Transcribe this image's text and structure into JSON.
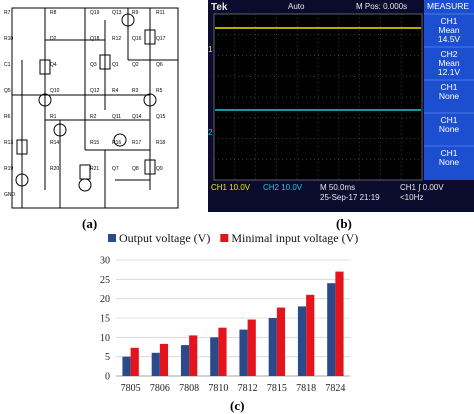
{
  "panels": {
    "a": "(a)",
    "b": "(b)",
    "c": "(c)"
  },
  "schematic": {
    "labels": [
      "R7",
      "R8",
      "Q19",
      "Q13",
      "R9",
      "R11",
      "R10",
      "D2",
      "Q18",
      "R12",
      "Q16",
      "Q17",
      "C1",
      "Q4",
      "Q3",
      "Q1",
      "Q2",
      "Q6",
      "Q5",
      "Q10",
      "Q12",
      "R4",
      "R3",
      "R5",
      "R6",
      "R1",
      "R2",
      "Q11",
      "Q14",
      "Q15",
      "R13",
      "R14",
      "R15",
      "R16",
      "R17",
      "R18",
      "R19",
      "R20",
      "R21",
      "Q7",
      "Q8",
      "Q9",
      "GND"
    ]
  },
  "scope": {
    "brand": "Tek",
    "trigger_state": "Auto",
    "mpos": "M Pos: 0.000s",
    "measure_title": "MEASURE",
    "measures": [
      {
        "ch": "CH1",
        "kind": "Mean",
        "value": "14.5V"
      },
      {
        "ch": "CH2",
        "kind": "Mean",
        "value": "12.1V"
      },
      {
        "ch": "CH1",
        "kind": "None",
        "value": ""
      },
      {
        "ch": "CH1",
        "kind": "None",
        "value": ""
      },
      {
        "ch": "CH1",
        "kind": "None",
        "value": ""
      }
    ],
    "ch1_scale": "CH1  10.0V",
    "ch2_scale": "CH2  10.0V",
    "timebase": "M 50.0ms",
    "date": "25-Sep-17 21:19",
    "trigger": "CH1 ∫ 0.00V",
    "freq": "<10Hz",
    "ch1_marker": "1",
    "ch2_marker": "2",
    "colors": {
      "ch1": "#f2e600",
      "ch2": "#18c8e0",
      "menu": "#1c4fd0"
    }
  },
  "chart_data": {
    "type": "bar",
    "categories": [
      "7805",
      "7806",
      "7808",
      "7810",
      "7812",
      "7815",
      "7818",
      "7824"
    ],
    "series": [
      {
        "name": "Output voltage (V)",
        "values": [
          5,
          6,
          8,
          10,
          12,
          15,
          18,
          24
        ],
        "color": "#2b4a8c"
      },
      {
        "name": "Minimal input voltage (V)",
        "values": [
          7.3,
          8.3,
          10.5,
          12.5,
          14.6,
          17.7,
          21,
          27
        ],
        "color": "#e3141b"
      }
    ],
    "yticks": [
      "0",
      "5",
      "10",
      "15",
      "20",
      "25",
      "30"
    ],
    "ylim": [
      0,
      30
    ],
    "grid": true,
    "legend": "top"
  }
}
